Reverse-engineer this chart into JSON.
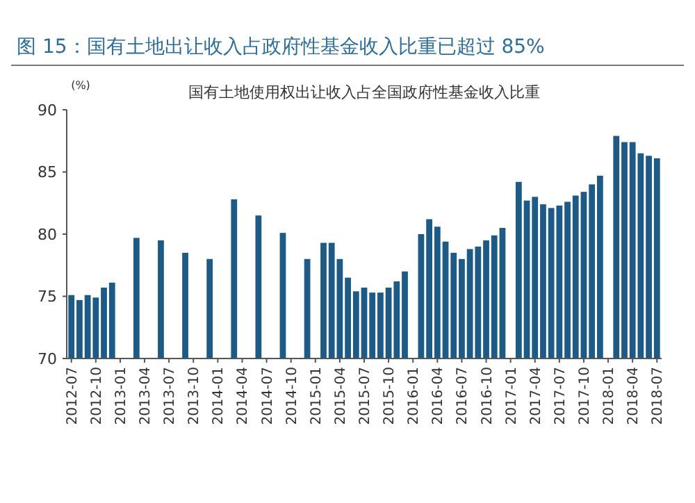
{
  "chart_data": {
    "type": "bar",
    "title": "图 15：国有土地出让收入占政府性基金收入比重已超过 85%",
    "subtitle": "国有土地使用权出让收入占全国政府性基金收入比重",
    "ylabel": "(%)",
    "categories": [
      "2012-07",
      null,
      null,
      "2012-10",
      null,
      null,
      "2013-01",
      null,
      null,
      "2013-04",
      null,
      null,
      "2013-07",
      null,
      null,
      "2013-10",
      null,
      null,
      "2014-01",
      null,
      null,
      "2014-04",
      null,
      null,
      "2014-07",
      null,
      null,
      "2014-10",
      null,
      null,
      "2015-01",
      null,
      null,
      "2015-04",
      null,
      null,
      "2015-07",
      null,
      null,
      "2015-10",
      null,
      null,
      "2016-01",
      null,
      null,
      "2016-04",
      null,
      null,
      "2016-07",
      null,
      null,
      "2016-10",
      null,
      null,
      "2017-01",
      null,
      null,
      "2017-04",
      null,
      null,
      "2017-07",
      null,
      null,
      "2017-10",
      null,
      null,
      "2018-01",
      null,
      null,
      "2018-04",
      null,
      null,
      "2018-07"
    ],
    "values": [
      75.1,
      74.7,
      75.1,
      74.9,
      75.7,
      76.1,
      null,
      null,
      79.7,
      null,
      null,
      79.5,
      null,
      null,
      78.5,
      null,
      null,
      78.0,
      null,
      null,
      82.8,
      null,
      null,
      81.5,
      null,
      null,
      80.1,
      null,
      null,
      78.0,
      null,
      79.3,
      79.3,
      78.0,
      76.5,
      75.4,
      75.7,
      75.3,
      75.3,
      75.7,
      76.2,
      77.0,
      null,
      80.0,
      81.2,
      80.6,
      79.4,
      78.5,
      78.0,
      78.8,
      79.0,
      79.5,
      79.9,
      80.5,
      null,
      84.2,
      82.7,
      83.0,
      82.4,
      82.1,
      82.3,
      82.6,
      83.1,
      83.4,
      84.0,
      84.7,
      null,
      87.9,
      87.4,
      87.4,
      86.5,
      86.3,
      86.1
    ],
    "color": "#1d5a85",
    "ylim": [
      70,
      90
    ],
    "yticks": [
      70,
      75,
      80,
      85,
      90
    ],
    "grid": false
  }
}
